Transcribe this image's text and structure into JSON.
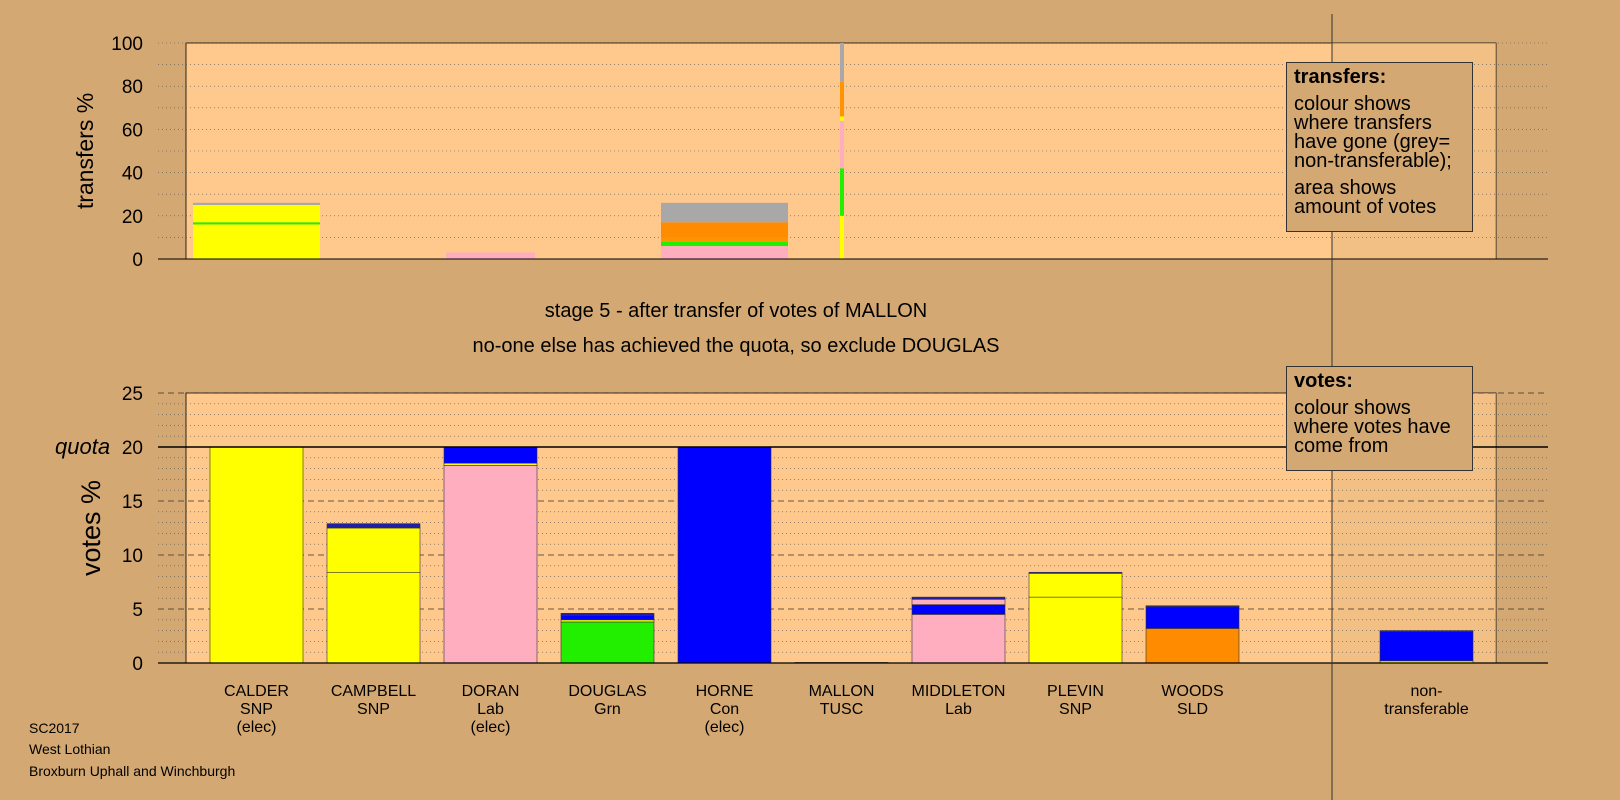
{
  "chart_data": [
    {
      "type": "bar",
      "stacked": true,
      "ylabel": "transfers %",
      "ylim": [
        0,
        100
      ],
      "yticks": [
        0,
        20,
        40,
        60,
        80,
        100
      ],
      "note": "transfers from MALLON",
      "bars": [
        {
          "candidate": "CALDER",
          "segments": [
            {
              "color": "#ffff00",
              "value": 16
            },
            {
              "color": "#22ee00",
              "value": 1
            },
            {
              "color": "#ffff00",
              "value": 8
            },
            {
              "color": "#a8a8a8",
              "value": 1
            }
          ]
        },
        {
          "candidate": "DORAN",
          "segments": [
            {
              "color": "#ffaec0",
              "value": 3
            }
          ]
        },
        {
          "candidate": "HORNE",
          "segments": [
            {
              "color": "#ffaec0",
              "value": 6
            },
            {
              "color": "#22ee00",
              "value": 2
            },
            {
              "color": "#ff9400",
              "value": 2
            },
            {
              "color": "#ff8c00",
              "value": 7
            },
            {
              "color": "#a8a8a8",
              "value": 9
            }
          ]
        },
        {
          "candidate": "MALLON",
          "thin": true,
          "segments": [
            {
              "color": "#ffff00",
              "value": 20
            },
            {
              "color": "#22ee00",
              "value": 22
            },
            {
              "color": "#ffaec0",
              "value": 22
            },
            {
              "color": "#ffff00",
              "value": 2
            },
            {
              "color": "#ff9400",
              "value": 16
            },
            {
              "color": "#a8a8a8",
              "value": 18
            }
          ]
        }
      ]
    },
    {
      "type": "bar",
      "stacked": true,
      "ylabel": "votes %",
      "ylim": [
        0,
        25
      ],
      "yticks": [
        0,
        5,
        10,
        15,
        20,
        25
      ],
      "quota": 20,
      "quota_label": "quota",
      "bars": [
        {
          "candidate": "CALDER",
          "label": [
            "CALDER",
            "SNP",
            "(elec)"
          ],
          "segments": [
            {
              "color": "#ffff00",
              "value": 20
            }
          ]
        },
        {
          "candidate": "CAMPBELL",
          "label": [
            "CAMPBELL",
            "SNP"
          ],
          "segments": [
            {
              "color": "#ffff00",
              "value": 8.4
            },
            {
              "color": "#ffff00",
              "value": 4.1
            },
            {
              "color": "#2020a0",
              "value": 0.4
            }
          ]
        },
        {
          "candidate": "DORAN",
          "label": [
            "DORAN",
            "Lab",
            "(elec)"
          ],
          "segments": [
            {
              "color": "#ffaec0",
              "value": 18.3
            },
            {
              "color": "#ffff00",
              "value": 0.2
            },
            {
              "color": "#0000ff",
              "value": 1.5
            }
          ]
        },
        {
          "candidate": "DOUGLAS",
          "label": [
            "DOUGLAS",
            "Grn"
          ],
          "segments": [
            {
              "color": "#22ee00",
              "value": 3.8
            },
            {
              "color": "#ffff00",
              "value": 0.2
            },
            {
              "color": "#0000ff",
              "value": 0.4
            },
            {
              "color": "#2020a0",
              "value": 0.2
            }
          ]
        },
        {
          "candidate": "HORNE",
          "label": [
            "HORNE",
            "Con",
            "(elec)"
          ],
          "segments": [
            {
              "color": "#0000ff",
              "value": 20
            }
          ]
        },
        {
          "candidate": "MALLON",
          "label": [
            "MALLON",
            "TUSC"
          ],
          "segments": [
            {
              "color": "#808080",
              "value": 0.05
            }
          ]
        },
        {
          "candidate": "MIDDLETON",
          "label": [
            "MIDDLETON",
            "Lab"
          ],
          "segments": [
            {
              "color": "#ffaec0",
              "value": 4.5
            },
            {
              "color": "#0000ff",
              "value": 0.9
            },
            {
              "color": "#ffaec0",
              "value": 0.5
            },
            {
              "color": "#2020a0",
              "value": 0.2
            }
          ]
        },
        {
          "candidate": "PLEVIN",
          "label": [
            "PLEVIN",
            "SNP"
          ],
          "segments": [
            {
              "color": "#ffff00",
              "value": 6.1
            },
            {
              "color": "#ffff00",
              "value": 2.2
            },
            {
              "color": "#2020a0",
              "value": 0.1
            }
          ]
        },
        {
          "candidate": "WOODS",
          "label": [
            "WOODS",
            "SLD"
          ],
          "segments": [
            {
              "color": "#ff8c00",
              "value": 3.2
            },
            {
              "color": "#0000ff",
              "value": 2.0
            },
            {
              "color": "#2020a0",
              "value": 0.1
            }
          ]
        },
        {
          "candidate": "non-transferable",
          "label": [
            "non-",
            "transferable"
          ],
          "segments": [
            {
              "color": "#ffff00",
              "value": 0.2
            },
            {
              "color": "#0000ff",
              "value": 2.7
            },
            {
              "color": "#2020a0",
              "value": 0.1
            }
          ]
        }
      ]
    }
  ],
  "titles": {
    "stage": "stage 5 - after transfer of votes of MALLON",
    "action": "no-one else has achieved the quota, so exclude DOUGLAS"
  },
  "legend_transfers": {
    "title": "transfers:",
    "line1": "colour shows where transfers have gone (grey= non-transferable);",
    "line2": "area shows amount of votes"
  },
  "legend_votes": {
    "title": "votes:",
    "line1": "colour shows where votes have come from"
  },
  "footer": {
    "election": "SC2017",
    "council": "West Lothian",
    "ward": "Broxburn Uphall and Winchburgh"
  },
  "colors": {
    "background": "#d4a872",
    "plot_area": "#ffc88c",
    "snp": "#ffff00",
    "lab": "#ffaec0",
    "con": "#0000ff",
    "grn": "#22ee00",
    "sld": "#ff8c00",
    "nontransferable": "#a8a8a8"
  }
}
